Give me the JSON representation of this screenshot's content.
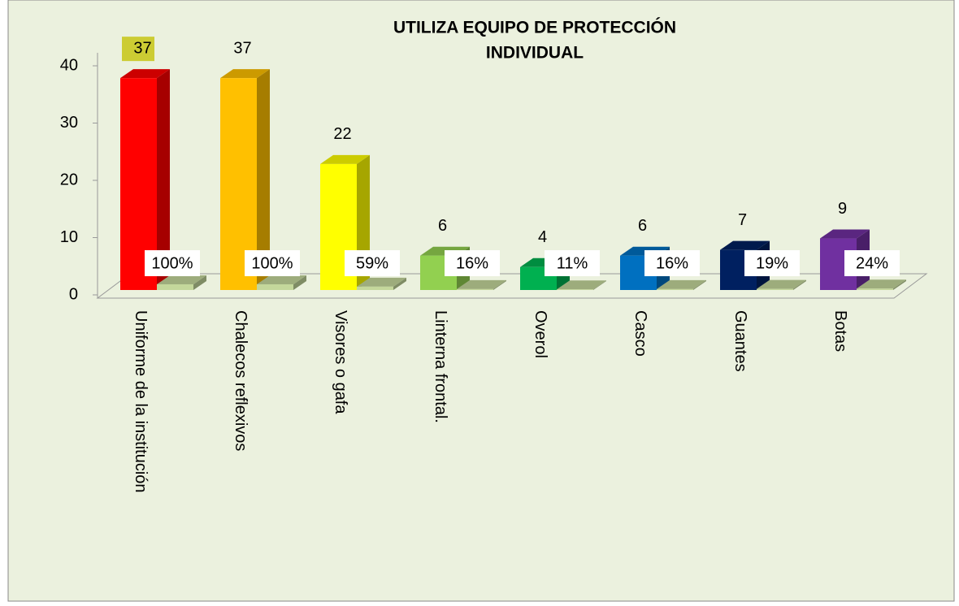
{
  "chart_data": {
    "type": "bar3d",
    "title_lines": [
      "UTILIZA EQUIPO DE PROTECCIÓN",
      "INDIVIDUAL"
    ],
    "categories": [
      "Uniforme de la institución",
      "Chalecos reflexivos",
      "Visores o gafa",
      "Linterna frontal.",
      "Overol",
      "Casco",
      "Guantes",
      "Botas"
    ],
    "series": [
      {
        "colors": [
          "#ff0000",
          "#ffc000",
          "#ffff00",
          "#92d050",
          "#00b050",
          "#0070c0",
          "#002060",
          "#7030a0"
        ],
        "values": [
          37,
          37,
          22,
          6,
          4,
          6,
          7,
          9
        ]
      },
      {
        "color": "#c4d79b",
        "values": [
          1,
          1,
          0.59,
          0.16,
          0.11,
          0.16,
          0.19,
          0.24
        ],
        "value_labels": [
          "100%",
          "100%",
          "59%",
          "16%",
          "11%",
          "16%",
          "19%",
          "24%"
        ]
      }
    ],
    "ylim": [
      0,
      40
    ],
    "yticks": [
      0,
      10,
      20,
      30,
      40
    ]
  }
}
